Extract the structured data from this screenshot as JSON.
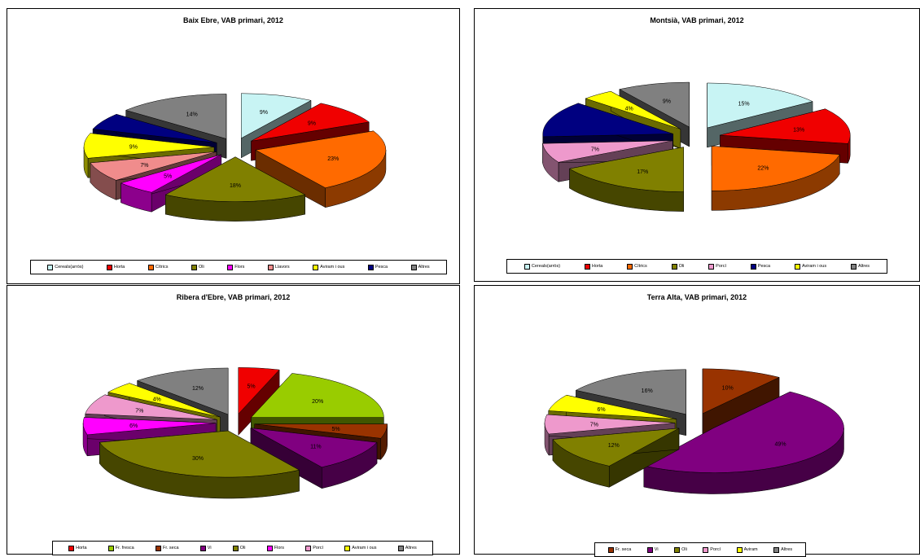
{
  "colors": {
    "Cereals(arròs)": "#c8f4f4",
    "Horta": "#f00000",
    "Cítrics": "#ff6a00",
    "Oli": "#808000",
    "Flors": "#ff00ff",
    "Llavors": "#f08c8c",
    "Aviram i ous": "#ffff00",
    "Pesca": "#000080",
    "Altres": "#808080",
    "Fr. fresca": "#99cc00",
    "Fr. seca": "#993300",
    "Vi": "#800080",
    "Porcí": "#ee99cc",
    "Aviram": "#ffff00"
  },
  "chart_data": [
    {
      "type": "pie",
      "title": "Baix Ebre, VAB primari, 2012",
      "categories": [
        "Cereals(arròs)",
        "Horta",
        "Cítrics",
        "Oli",
        "Flors",
        "Llavors",
        "Aviram i ous",
        "Pesca",
        "Altres"
      ],
      "legend": [
        "Cereals(arròs)",
        "Horta",
        "Cítrics",
        "Oli",
        "Flors",
        "Llavors",
        "Aviram i ous",
        "Pesca",
        "Altres"
      ],
      "values": [
        9,
        9,
        23,
        18,
        5,
        7,
        9,
        6,
        14
      ],
      "labels": [
        "9%",
        "9%",
        "23%",
        "18%",
        "5%",
        "7%",
        "9%",
        "",
        "14%"
      ],
      "legend_position": "bottom"
    },
    {
      "type": "pie",
      "title": "Montsià, VAB primari, 2012",
      "categories": [
        "Cereals(arròs)",
        "Horta",
        "Cítrics",
        "Oli",
        "Porcí",
        "Pesca",
        "Aviram i ous",
        "Altres"
      ],
      "legend": [
        "Cereals(arròs)",
        "Horta",
        "Cítrics",
        "Oli",
        "Porcí",
        "Pesca",
        "Aviram i ous",
        "Altres"
      ],
      "values": [
        15,
        13,
        22,
        17,
        7,
        13,
        4,
        9
      ],
      "labels": [
        "15%",
        "13%",
        "22%",
        "17%",
        "7%",
        "",
        "4%",
        "9%"
      ],
      "legend_position": "bottom"
    },
    {
      "type": "pie",
      "title": "Ribera d'Ebre, VAB primari, 2012",
      "categories": [
        "Horta",
        "Fr. fresca",
        "Fr. seca",
        "Vi",
        "Oli",
        "Flors",
        "Porcí",
        "Aviram i ous",
        "Altres"
      ],
      "legend": [
        "Horta",
        "Fr. fresca",
        "Fr. seca",
        "Vi",
        "Oli",
        "Flors",
        "Porcí",
        "Aviram i ous",
        "Altres"
      ],
      "values": [
        5,
        20,
        5,
        11,
        30,
        6,
        7,
        4,
        12
      ],
      "labels": [
        "5%",
        "20%",
        "5%",
        "11%",
        "30%",
        "6%",
        "7%",
        "4%",
        "12%"
      ],
      "legend_position": "bottom"
    },
    {
      "type": "pie",
      "title": "Terra Alta, VAB primari, 2012",
      "categories": [
        "Fr. seca",
        "Vi",
        "Oli",
        "Porcí",
        "Aviram",
        "Altres"
      ],
      "legend": [
        "Fr. seca",
        "Vi",
        "Oli",
        "Porcí",
        "Aviram",
        "Altres"
      ],
      "values": [
        10,
        49,
        12,
        7,
        6,
        16
      ],
      "labels": [
        "10%",
        "49%",
        "12%",
        "7%",
        "6%",
        "16%"
      ],
      "legend_position": "bottom"
    }
  ]
}
